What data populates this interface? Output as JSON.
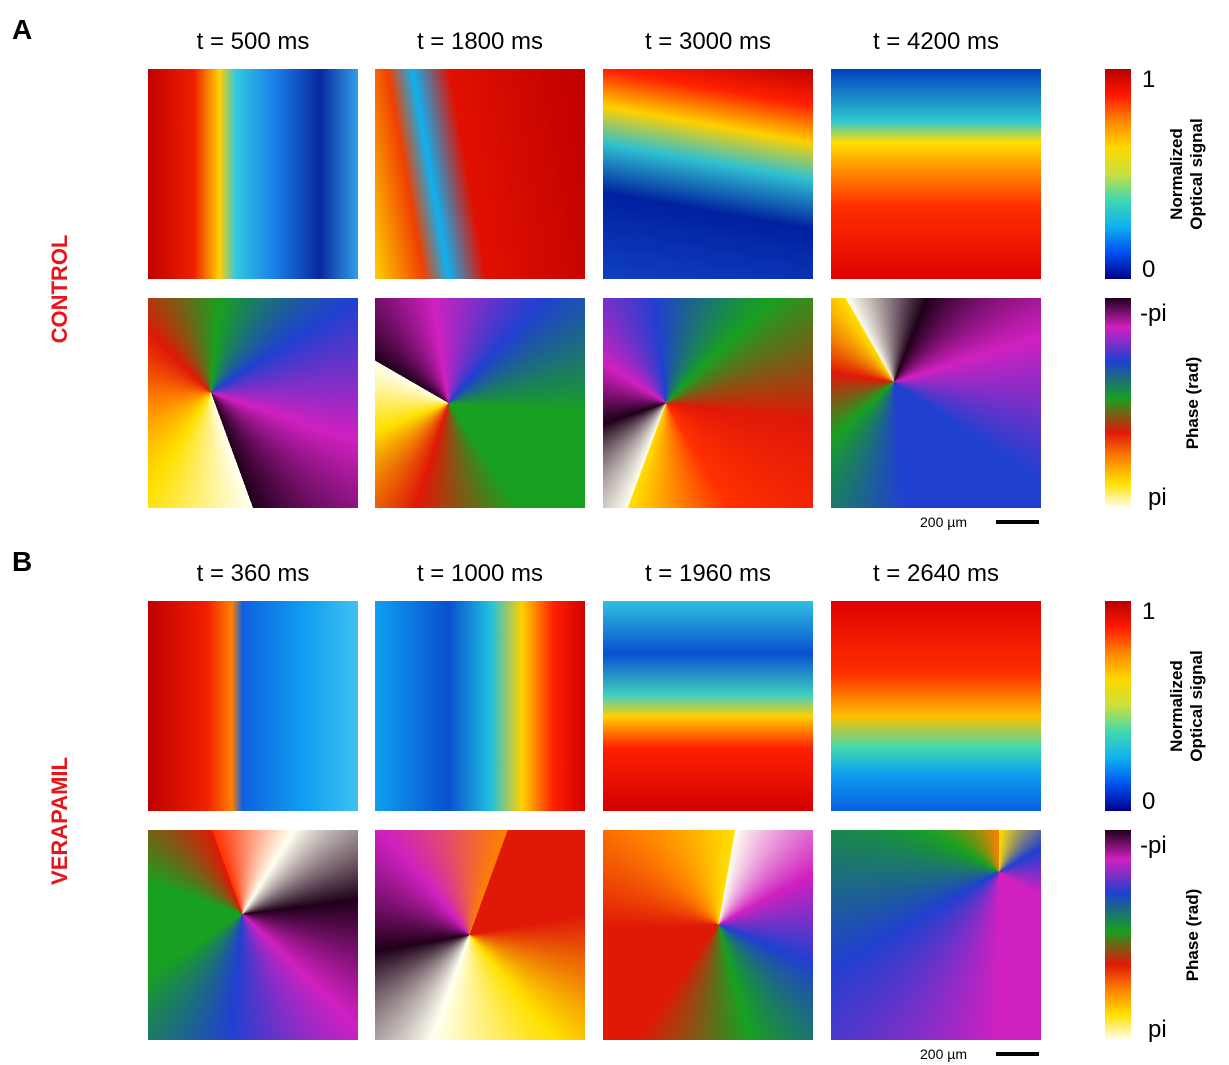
{
  "panels": [
    {
      "label": "A",
      "condition": "CONTROL",
      "times": [
        "t = 500 ms",
        "t = 1800 ms",
        "t = 3000 ms",
        "t = 4200 ms"
      ],
      "signal_colorbar": {
        "title": [
          "Normalized",
          "Optical signal"
        ],
        "max": "1",
        "min": "0"
      },
      "phase_colorbar": {
        "title": "Phase (rad)",
        "top": "-pi",
        "bottom": "pi"
      },
      "scale_bar": "200 µm"
    },
    {
      "label": "B",
      "condition": "VERAPAMIL",
      "times": [
        "t = 360 ms",
        "t = 1000 ms",
        "t = 1960 ms",
        "t = 2640 ms"
      ],
      "signal_colorbar": {
        "title": [
          "Normalized",
          "Optical signal"
        ],
        "max": "1",
        "min": "0"
      },
      "phase_colorbar": {
        "title": "Phase (rad)",
        "top": "-pi",
        "bottom": "pi"
      },
      "scale_bar": "200 µm"
    }
  ]
}
